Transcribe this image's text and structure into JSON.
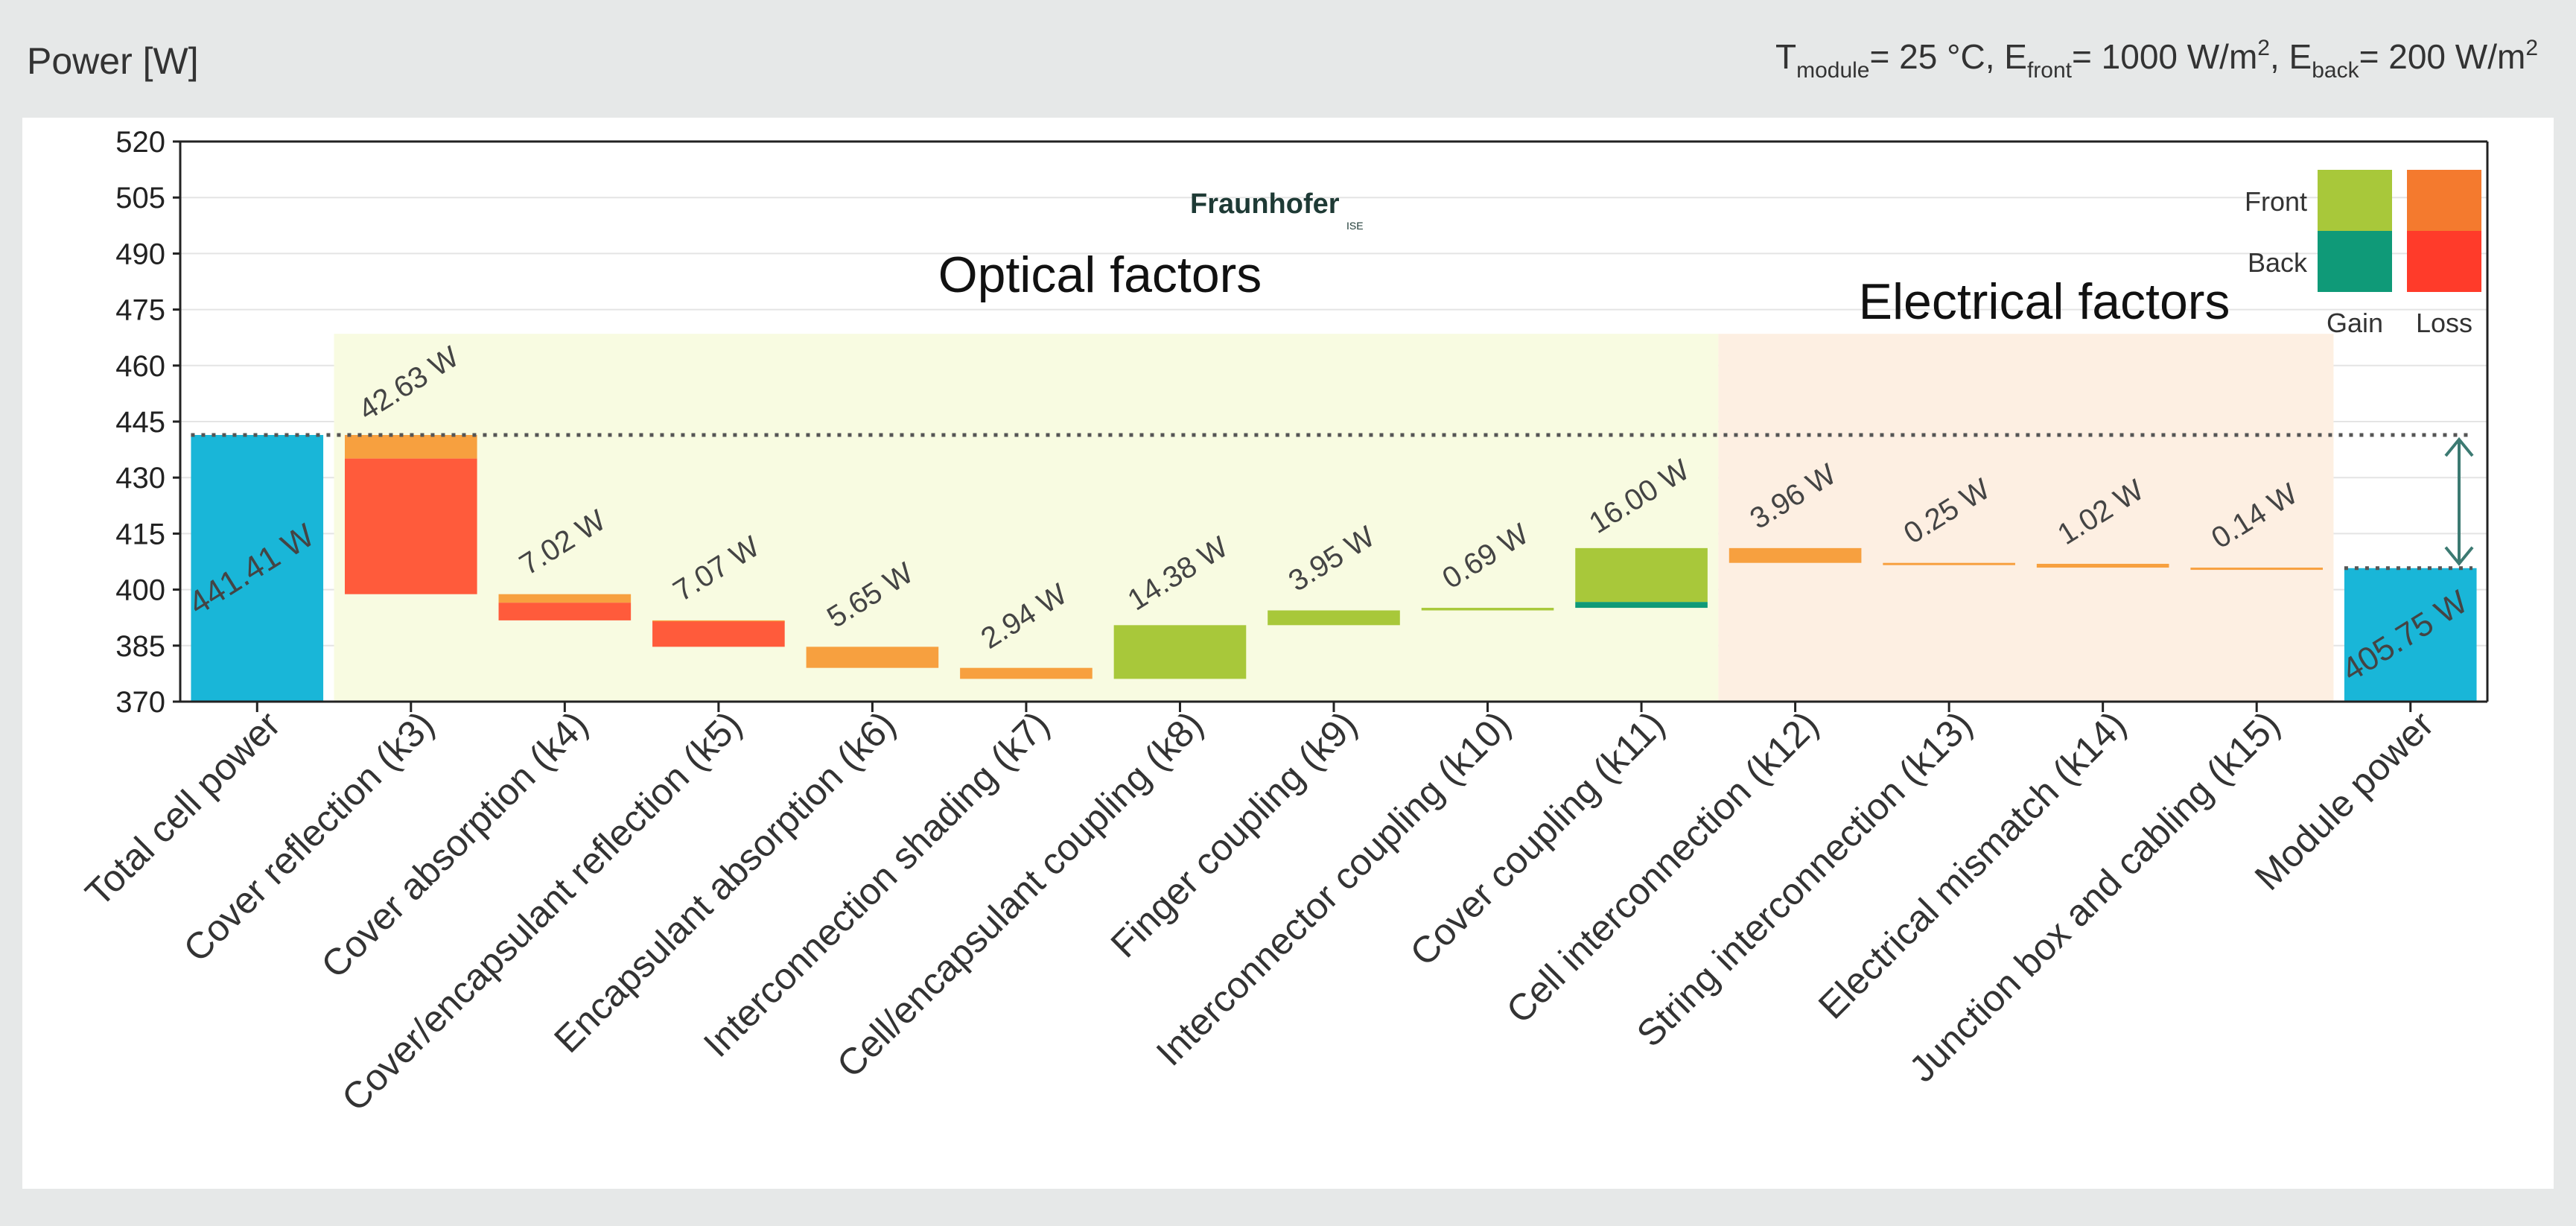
{
  "chart_data": {
    "type": "bar",
    "subtype": "waterfall",
    "ylabel": "Power [W]",
    "conditions": {
      "t_label": "T",
      "t_sub": "module",
      "t_value": "25 °C,",
      "ef_label": "E",
      "ef_sub": "front",
      "ef_value": "1000 W/m",
      "eb_label": "E",
      "eb_sub": "back",
      "eb_value": "200 W/m",
      "exponent": "2"
    },
    "ylim": [
      370,
      520
    ],
    "yticks": [
      370,
      385,
      400,
      415,
      430,
      445,
      460,
      475,
      490,
      505,
      520
    ],
    "categories": [
      "Total cell power",
      "Cover reflection (k3)",
      "Cover absorption (k4)",
      "Cover/encapsulant reflection (k5)",
      "Encapsulant absorption (k6)",
      "Interconnection shading (k7)",
      "Cell/encapsulant coupling (k8)",
      "Finger coupling (k9)",
      "Interconnector coupling (k10)",
      "Cover coupling (k11)",
      "Cell interconnection (k12)",
      "String interconnection (k13)",
      "Electrical mismatch (k14)",
      "Junction box and cabling (k15)",
      "Module power"
    ],
    "labels": [
      "441.41 W",
      "42.63 W",
      "7.02 W",
      "7.07 W",
      "5.65 W",
      "2.94 W",
      "14.38 W",
      "3.95 W",
      "0.69 W",
      "16.00 W",
      "3.96 W",
      "0.25 W",
      "1.02 W",
      "0.14 W",
      "405.75 W"
    ],
    "bars": [
      {
        "kind": "total",
        "segments": [
          {
            "start": 370,
            "end": 441.41,
            "role": "total"
          }
        ]
      },
      {
        "kind": "loss",
        "segments": [
          {
            "start": 441.41,
            "end": 435.1,
            "role": "front-loss"
          },
          {
            "start": 435.1,
            "end": 398.78,
            "role": "back-loss"
          }
        ]
      },
      {
        "kind": "loss",
        "segments": [
          {
            "start": 398.78,
            "end": 396.5,
            "role": "front-loss"
          },
          {
            "start": 396.5,
            "end": 391.76,
            "role": "back-loss"
          }
        ]
      },
      {
        "kind": "loss",
        "segments": [
          {
            "start": 391.76,
            "end": 391.5,
            "role": "front-loss"
          },
          {
            "start": 391.5,
            "end": 384.69,
            "role": "back-loss"
          }
        ]
      },
      {
        "kind": "loss",
        "segments": [
          {
            "start": 384.69,
            "end": 379.04,
            "role": "front-loss"
          }
        ]
      },
      {
        "kind": "loss",
        "segments": [
          {
            "start": 379.04,
            "end": 376.1,
            "role": "front-loss"
          }
        ]
      },
      {
        "kind": "gain",
        "segments": [
          {
            "start": 376.1,
            "end": 390.48,
            "role": "front-gain"
          }
        ]
      },
      {
        "kind": "gain",
        "segments": [
          {
            "start": 390.48,
            "end": 394.43,
            "role": "front-gain"
          }
        ]
      },
      {
        "kind": "gain",
        "segments": [
          {
            "start": 394.43,
            "end": 395.12,
            "role": "front-gain"
          }
        ]
      },
      {
        "kind": "gain",
        "segments": [
          {
            "start": 395.12,
            "end": 396.7,
            "role": "back-gain"
          },
          {
            "start": 396.7,
            "end": 411.12,
            "role": "front-gain"
          }
        ]
      },
      {
        "kind": "loss",
        "segments": [
          {
            "start": 411.12,
            "end": 407.16,
            "role": "front-loss"
          }
        ]
      },
      {
        "kind": "loss",
        "segments": [
          {
            "start": 407.16,
            "end": 406.91,
            "role": "front-loss"
          }
        ]
      },
      {
        "kind": "loss",
        "segments": [
          {
            "start": 406.91,
            "end": 405.89,
            "role": "front-loss"
          }
        ]
      },
      {
        "kind": "loss",
        "segments": [
          {
            "start": 405.89,
            "end": 405.75,
            "role": "front-loss"
          }
        ]
      },
      {
        "kind": "total",
        "segments": [
          {
            "start": 370,
            "end": 405.75,
            "role": "total"
          }
        ]
      }
    ],
    "reference_lines": [
      441.41,
      405.75
    ],
    "regions": [
      {
        "name": "Optical factors",
        "from_index": 1,
        "to_index": 9,
        "top": 468.5,
        "color": "#f8fbe1"
      },
      {
        "name": "Electrical factors",
        "from_index": 10,
        "to_index": 13,
        "top": 468.5,
        "color": "#fdefe2"
      }
    ],
    "legend": {
      "row_labels": [
        "Front",
        "Back"
      ],
      "col_labels": [
        "Gain",
        "Loss"
      ],
      "position": "top-right"
    },
    "logo": {
      "text": "Fraunhofer",
      "sub": "ISE"
    },
    "colors": {
      "total": "#19b6d8",
      "front-gain": "#a8c83a",
      "back-gain": "#0f9a78",
      "front-loss": "#f7a03f",
      "back-loss": "#ff5b3b",
      "legend-front-gain": "#a8c83a",
      "legend-back-gain": "#0f9a78",
      "legend-front-loss": "#f47a2e",
      "legend-back-loss": "#ff3b2a",
      "grid": "#e4e4e4",
      "logo": "#1a9070"
    }
  }
}
